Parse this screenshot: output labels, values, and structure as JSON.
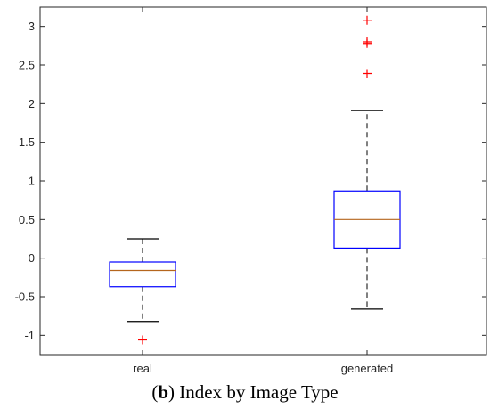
{
  "chart_data": {
    "type": "boxplot",
    "categories": [
      "real",
      "generated"
    ],
    "ylim": [
      -1.25,
      3.25
    ],
    "yticks": [
      -1,
      -0.5,
      0,
      0.5,
      1,
      1.5,
      2,
      2.5,
      3
    ],
    "ytick_labels": [
      "-1",
      "-0.5",
      "0",
      "0.5",
      "1",
      "1.5",
      "2",
      "2.5",
      "3"
    ],
    "grid": false,
    "legend": "none",
    "boxes": [
      {
        "category": "real",
        "whisker_low": -0.82,
        "q1": -0.37,
        "median": -0.16,
        "q3": -0.05,
        "whisker_high": 0.25,
        "outliers": [
          -1.06
        ]
      },
      {
        "category": "generated",
        "whisker_low": -0.66,
        "q1": 0.13,
        "median": 0.5,
        "q3": 0.87,
        "whisker_high": 1.91,
        "outliers": [
          2.39,
          2.78,
          2.8,
          3.08
        ]
      }
    ],
    "colors": {
      "box": "#0000ff",
      "median": "#b5651d",
      "whisker": "#000000",
      "outlier": "#ff0000",
      "axis": "#262626"
    }
  },
  "caption": {
    "open_paren": "(",
    "letter": "b",
    "rest": ") Index by Image Type"
  }
}
